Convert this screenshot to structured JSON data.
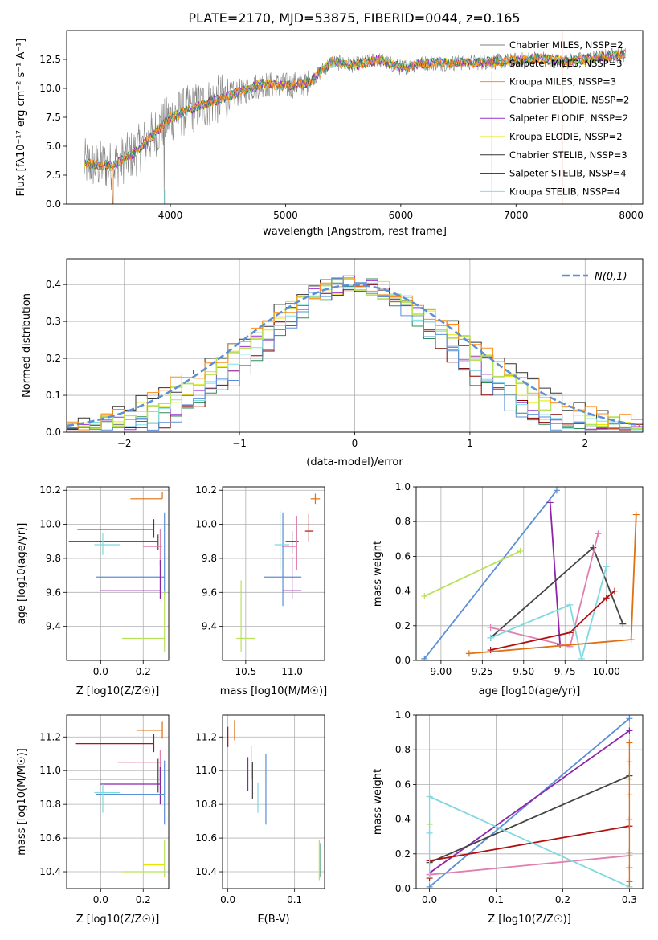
{
  "title": "PLATE=2170, MJD=53875, FIBERID=0044, z=0.165",
  "colors": {
    "chabrier_miles": "#7f7f7f",
    "salpeter_miles": "#b22222",
    "kroupa_miles": "#ff8c1a",
    "chabrier_elodie": "#2e8b57",
    "salpeter_elodie": "#9932cc",
    "kroupa_elodie": "#e6e600",
    "chabrier_stelib": "#333333",
    "salpeter_stelib": "#8b0000",
    "kroupa_stelib": "#7fdfe6"
  },
  "chart_data": [
    {
      "id": "spectrum",
      "type": "line",
      "xlabel": "wavelength [Angstrom, rest frame]",
      "ylabel": "Flux [f",
      "ylabel_full": "Flux [fλ10⁻¹⁷ erg cm⁻² s⁻¹ A⁻¹]",
      "xlim": [
        3100,
        8100
      ],
      "ylim": [
        0,
        15
      ],
      "xticks": [
        4000,
        5000,
        6000,
        7000,
        8000
      ],
      "yticks": [
        0.0,
        2.5,
        5.0,
        7.5,
        10.0,
        12.5
      ],
      "xticklabels": [
        "4000",
        "5000",
        "6000",
        "7000",
        "8000"
      ],
      "yticklabels": [
        "0.0",
        "2.5",
        "5.0",
        "7.5",
        "10.0",
        "12.5"
      ],
      "legend_position": "right",
      "legend": [
        {
          "name": "Chabrier MILES, NSSP=2",
          "color": "#7f7f7f"
        },
        {
          "name": "Salpeter MILES, NSSP=3",
          "color": "#b22222"
        },
        {
          "name": "Kroupa MILES, NSSP=3",
          "color": "#ff8c1a"
        },
        {
          "name": "Chabrier ELODIE, NSSP=2",
          "color": "#2e8b57"
        },
        {
          "name": "Salpeter ELODIE, NSSP=2",
          "color": "#9932cc"
        },
        {
          "name": "Kroupa ELODIE, NSSP=2",
          "color": "#e6e600"
        },
        {
          "name": "Chabrier STELIB, NSSP=3",
          "color": "#333333"
        },
        {
          "name": "Salpeter STELIB, NSSP=4",
          "color": "#8b0000"
        },
        {
          "name": "Kroupa STELIB, NSSP=4",
          "color": "#7fdfe6"
        }
      ],
      "continuum": {
        "x": [
          3250,
          3500,
          3700,
          3900,
          4000,
          4200,
          4500,
          4800,
          5000,
          5200,
          5400,
          5600,
          5800,
          6000,
          6200,
          6500,
          6800,
          7000,
          7200,
          7400,
          7600,
          7900
        ],
        "y": [
          3.5,
          3.3,
          4.5,
          6.5,
          7.5,
          8.3,
          9.3,
          10.4,
          10.2,
          10.5,
          12.3,
          12.0,
          12.5,
          11.8,
          12.2,
          12.2,
          12.3,
          12.4,
          12.6,
          12.3,
          12.5,
          12.9
        ]
      }
    },
    {
      "id": "residuals",
      "type": "line",
      "xlabel": "(data-model)/error",
      "ylabel": "Normed distribution",
      "xlim": [
        -2.5,
        2.5
      ],
      "ylim": [
        0,
        0.47
      ],
      "xticks": [
        -2,
        -1,
        0,
        1,
        2
      ],
      "yticks": [
        0.0,
        0.1,
        0.2,
        0.3,
        0.4
      ],
      "xticklabels": [
        "−2",
        "−1",
        "0",
        "1",
        "2"
      ],
      "yticklabels": [
        "0.0",
        "0.1",
        "0.2",
        "0.3",
        "0.4"
      ],
      "legend": [
        {
          "name": "N(0,1)",
          "color": "#5b8fd6"
        }
      ],
      "legend_position": "top-right"
    },
    {
      "id": "age_vs_Z",
      "type": "scatter",
      "xlabel": "Z [log10(Z/Z☉)]",
      "ylabel": "age [log10(age/yr)]",
      "xlim": [
        -0.16,
        0.32
      ],
      "ylim": [
        9.2,
        10.22
      ],
      "xticks": [
        0.0,
        0.2
      ],
      "yticks": [
        9.4,
        9.6,
        9.8,
        10.0,
        10.2
      ],
      "xticklabels": [
        "0.0",
        "0.2"
      ],
      "yticklabels": [
        "9.4",
        "9.6",
        "9.8",
        "10.0",
        "10.2"
      ]
    },
    {
      "id": "age_vs_mass",
      "type": "scatter",
      "xlabel": "mass [log10(M/M☉)]",
      "ylabel": "",
      "xlim": [
        10.25,
        11.35
      ],
      "ylim": [
        9.2,
        10.22
      ],
      "xticks": [
        10.5,
        11.0
      ],
      "yticks": [
        9.4,
        9.6,
        9.8,
        10.0,
        10.2
      ],
      "xticklabels": [
        "10.5",
        "11.0"
      ],
      "yticklabels": [
        "9.4",
        "9.6",
        "9.8",
        "10.0",
        "10.2"
      ]
    },
    {
      "id": "weight_vs_age",
      "type": "line",
      "xlabel": "age [log10(age/yr)]",
      "ylabel": "mass weight",
      "xlim": [
        8.85,
        10.22
      ],
      "ylim": [
        0,
        1.0
      ],
      "xticks": [
        9.0,
        9.25,
        9.5,
        9.75,
        10.0
      ],
      "yticks": [
        0.0,
        0.2,
        0.4,
        0.6,
        0.8,
        1.0
      ],
      "xticklabels": [
        "9.00",
        "9.25",
        "9.50",
        "9.75",
        "10.00"
      ],
      "yticklabels": [
        "0.0",
        "0.2",
        "0.4",
        "0.6",
        "0.8",
        "1.0"
      ],
      "series": [
        {
          "color": "#5b8fd6",
          "x": [
            8.9,
            9.7
          ],
          "y": [
            0.01,
            0.98
          ]
        },
        {
          "color": "#8e24aa",
          "x": [
            9.66,
            9.72
          ],
          "y": [
            0.91,
            0.09
          ]
        },
        {
          "color": "#b8e05a",
          "x": [
            8.9,
            9.48
          ],
          "y": [
            0.37,
            0.63
          ]
        },
        {
          "color": "#444444",
          "x": [
            9.3,
            9.92,
            10.1
          ],
          "y": [
            0.13,
            0.65,
            0.21
          ]
        },
        {
          "color": "#e07fb0",
          "x": [
            9.3,
            9.78,
            9.95
          ],
          "y": [
            0.19,
            0.08,
            0.73
          ]
        },
        {
          "color": "#80d8e0",
          "x": [
            9.3,
            9.78,
            9.85,
            10.0
          ],
          "y": [
            0.13,
            0.32,
            0.01,
            0.54
          ]
        },
        {
          "color": "#b01010",
          "x": [
            9.3,
            9.78,
            10.0,
            10.05
          ],
          "y": [
            0.06,
            0.16,
            0.36,
            0.4
          ]
        },
        {
          "color": "#e07010",
          "x": [
            9.17,
            10.15,
            10.18
          ],
          "y": [
            0.04,
            0.12,
            0.84
          ]
        }
      ]
    },
    {
      "id": "mass_vs_Z",
      "type": "scatter",
      "xlabel": "Z [log10(Z/Z☉)]",
      "ylabel": "mass [log10(M/M☉)]",
      "xlim": [
        -0.16,
        0.32
      ],
      "ylim": [
        10.3,
        11.33
      ],
      "xticks": [
        0.0,
        0.2
      ],
      "yticks": [
        10.4,
        10.6,
        10.8,
        11.0,
        11.2
      ],
      "xticklabels": [
        "0.0",
        "0.2"
      ],
      "yticklabels": [
        "10.4",
        "10.6",
        "10.8",
        "11.0",
        "11.2"
      ]
    },
    {
      "id": "mass_vs_ebv",
      "type": "scatter",
      "xlabel": "E(B-V)",
      "ylabel": "",
      "xlim": [
        -0.008,
        0.145
      ],
      "ylim": [
        10.3,
        11.33
      ],
      "xticks": [
        0.0,
        0.1
      ],
      "yticks": [
        10.4,
        10.6,
        10.8,
        11.0,
        11.2
      ],
      "xticklabels": [
        "0.0",
        "0.1"
      ],
      "yticklabels": [
        "10.4",
        "10.6",
        "10.8",
        "11.0",
        "11.2"
      ]
    },
    {
      "id": "weight_vs_Z",
      "type": "line",
      "xlabel": "Z [log10(Z/Z☉)]",
      "ylabel": "mass weight",
      "xlim": [
        -0.02,
        0.32
      ],
      "ylim": [
        0,
        1.0
      ],
      "xticks": [
        0.0,
        0.1,
        0.2,
        0.3
      ],
      "yticks": [
        0.0,
        0.2,
        0.4,
        0.6,
        0.8,
        1.0
      ],
      "xticklabels": [
        "0.0",
        "0.1",
        "0.2",
        "0.3"
      ],
      "yticklabels": [
        "0.0",
        "0.2",
        "0.4",
        "0.6",
        "0.8",
        "1.0"
      ],
      "series": [
        {
          "color": "#5b8fd6",
          "x": [
            0.0,
            0.3
          ],
          "y": [
            0.01,
            0.98
          ]
        },
        {
          "color": "#8e24aa",
          "x": [
            0.0,
            0.3
          ],
          "y": [
            0.09,
            0.91
          ]
        },
        {
          "color": "#444444",
          "x": [
            0.0,
            0.3
          ],
          "y": [
            0.15,
            0.65
          ]
        },
        {
          "color": "#b01010",
          "x": [
            0.0,
            0.3
          ],
          "y": [
            0.16,
            0.36
          ]
        },
        {
          "color": "#e07fb0",
          "x": [
            0.0,
            0.3
          ],
          "y": [
            0.08,
            0.19
          ]
        },
        {
          "color": "#80d8e0",
          "x": [
            0.0,
            0.3
          ],
          "y": [
            0.53,
            0.01
          ]
        }
      ]
    }
  ]
}
